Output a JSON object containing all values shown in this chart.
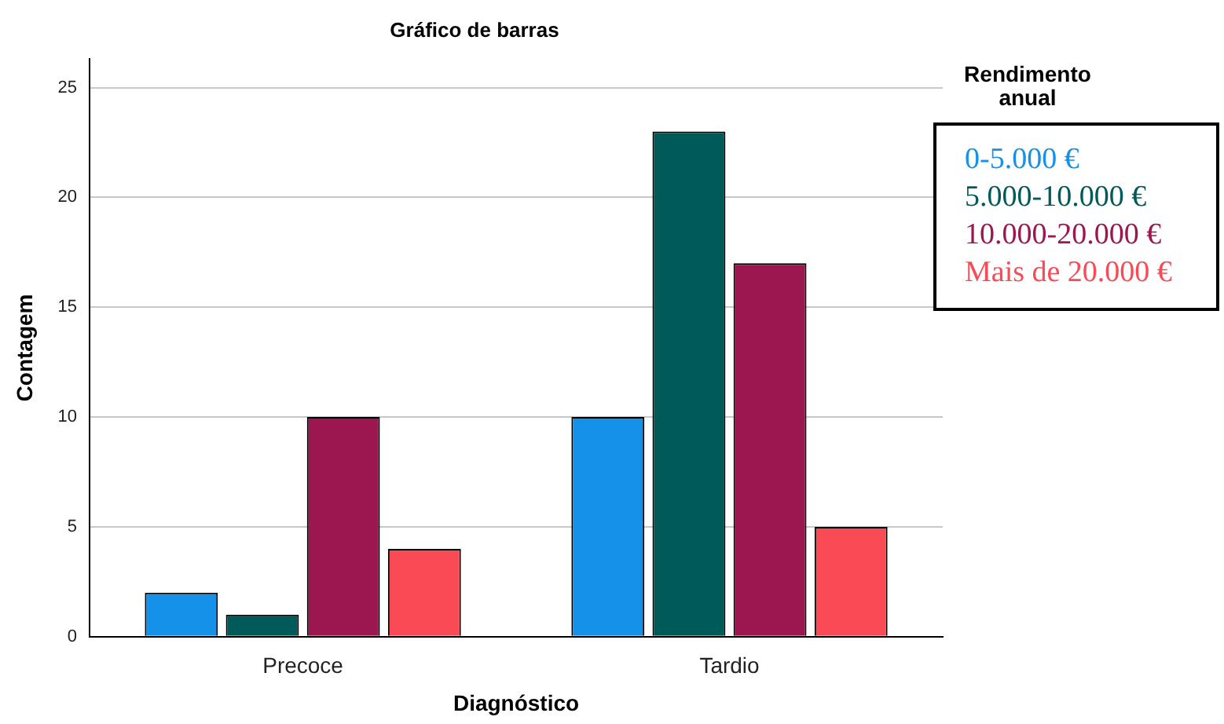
{
  "chart_data": {
    "type": "bar",
    "title": "Gráfico de barras",
    "xlabel": "Diagnóstico",
    "ylabel": "Contagem",
    "legend_title": "Rendimento anual",
    "categories": [
      "Precoce",
      "Tardio"
    ],
    "series": [
      {
        "name": "0-5.000 €",
        "color": "#1591ea",
        "values": [
          2,
          10
        ]
      },
      {
        "name": "5.000-10.000 €",
        "color": "#005a5a",
        "values": [
          1,
          23
        ]
      },
      {
        "name": "10.000-20.000 €",
        "color": "#9c1750",
        "values": [
          10,
          17
        ]
      },
      {
        "name": "Mais de 20.000 €",
        "color": "#f94a55",
        "values": [
          4,
          5
        ]
      }
    ],
    "ylim": [
      0,
      26.3
    ],
    "yticks": [
      0,
      5,
      10,
      15,
      20,
      25
    ],
    "grid": "y",
    "legend": "right"
  }
}
